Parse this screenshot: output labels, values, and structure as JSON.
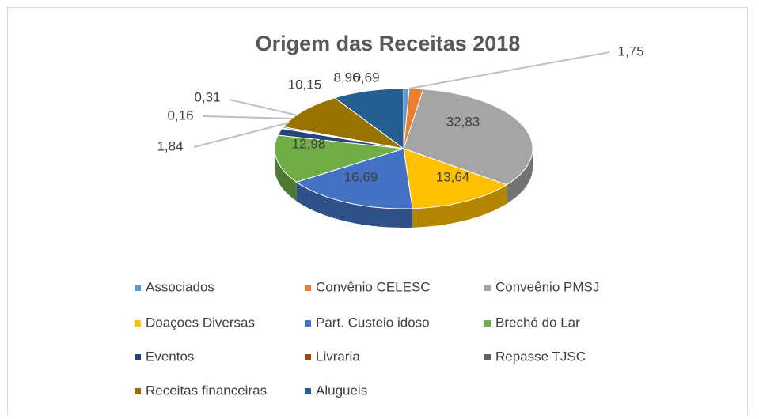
{
  "chart_data": {
    "type": "pie",
    "title": "Origem das Receitas 2018",
    "categories": [
      "Associados",
      "Convênio CELESC",
      "Conveênio PMSJ",
      "Doaçoes Diversas",
      "Part. Custeio idoso",
      "Brechó do Lar",
      "Eventos",
      "Livraria",
      "Repasse TJSC",
      "Receitas financeiras",
      "Alugueis"
    ],
    "values": [
      0.69,
      1.75,
      32.83,
      13.64,
      16.69,
      12.98,
      1.84,
      0.16,
      0.31,
      10.15,
      8.96
    ],
    "value_labels": [
      "0,69",
      "1,75",
      "32,83",
      "13,64",
      "16,69",
      "12,98",
      "1,84",
      "0,16",
      "0,31",
      "10,15",
      "8,96"
    ],
    "colors": [
      "#5b9bd5",
      "#ed7d31",
      "#a5a5a5",
      "#ffc000",
      "#4472c4",
      "#70ad47",
      "#264478",
      "#9e480e",
      "#636363",
      "#997300",
      "#255e91"
    ],
    "legend": "bottom"
  }
}
